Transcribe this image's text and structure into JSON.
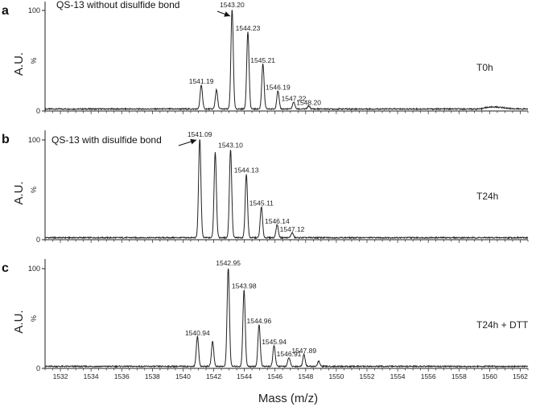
{
  "figure": {
    "xlabel": "Mass (m/z)",
    "x_ticks": [
      1532,
      1534,
      1536,
      1538,
      1540,
      1542,
      1544,
      1546,
      1548,
      1550,
      1552,
      1554,
      1556,
      1558,
      1560,
      1562
    ],
    "xlim": [
      1531,
      1562.5
    ],
    "line_color": "#222222"
  },
  "chart_data": [
    {
      "type": "line",
      "panel": "a",
      "condition": "T0h",
      "ylabel": "A.U.",
      "y_axis_name": "%",
      "y_ticks": [
        "0",
        "100"
      ],
      "ylim": [
        0,
        100
      ],
      "annotation": "QS-13 without disulfide bond",
      "peaks": [
        {
          "mz": 1541.19,
          "label": "1541.19",
          "intensity": 24
        },
        {
          "mz": 1542.18,
          "label": "",
          "intensity": 19
        },
        {
          "mz": 1543.2,
          "label": "1543.20",
          "intensity": 100
        },
        {
          "mz": 1544.23,
          "label": "1544.23",
          "intensity": 77
        },
        {
          "mz": 1545.21,
          "label": "1545.21",
          "intensity": 45
        },
        {
          "mz": 1546.19,
          "label": "1546.19",
          "intensity": 18
        },
        {
          "mz": 1547.22,
          "label": "1547.22",
          "intensity": 7
        },
        {
          "mz": 1548.2,
          "label": "1548.20",
          "intensity": 3
        }
      ]
    },
    {
      "type": "line",
      "panel": "b",
      "condition": "T24h",
      "ylabel": "A.U.",
      "y_axis_name": "%",
      "y_ticks": [
        "0",
        "100"
      ],
      "ylim": [
        0,
        100
      ],
      "annotation": "QS-13 with disulfide bond",
      "peaks": [
        {
          "mz": 1541.09,
          "label": "1541.09",
          "intensity": 100
        },
        {
          "mz": 1542.1,
          "label": "",
          "intensity": 86
        },
        {
          "mz": 1543.1,
          "label": "1543.10",
          "intensity": 89
        },
        {
          "mz": 1544.13,
          "label": "1544.13",
          "intensity": 64
        },
        {
          "mz": 1545.11,
          "label": "1545.11",
          "intensity": 31
        },
        {
          "mz": 1546.14,
          "label": "1546.14",
          "intensity": 13
        },
        {
          "mz": 1547.12,
          "label": "1547.12",
          "intensity": 5
        }
      ]
    },
    {
      "type": "line",
      "panel": "c",
      "condition": "T24h + DTT",
      "ylabel": "A.U.",
      "y_axis_name": "%",
      "y_ticks": [
        "0",
        "100"
      ],
      "ylim": [
        0,
        100
      ],
      "annotation": "",
      "peaks": [
        {
          "mz": 1540.94,
          "label": "1540.94",
          "intensity": 30
        },
        {
          "mz": 1541.93,
          "label": "",
          "intensity": 25
        },
        {
          "mz": 1542.95,
          "label": "1542.95",
          "intensity": 100
        },
        {
          "mz": 1543.98,
          "label": "1543.98",
          "intensity": 77
        },
        {
          "mz": 1544.96,
          "label": "1544.96",
          "intensity": 42
        },
        {
          "mz": 1545.94,
          "label": "1545.94",
          "intensity": 21
        },
        {
          "mz": 1546.91,
          "label": "1546.91",
          "intensity": 9
        },
        {
          "mz": 1547.89,
          "label": "1547.89",
          "intensity": 12
        },
        {
          "mz": 1548.85,
          "label": "",
          "intensity": 5
        }
      ]
    }
  ]
}
